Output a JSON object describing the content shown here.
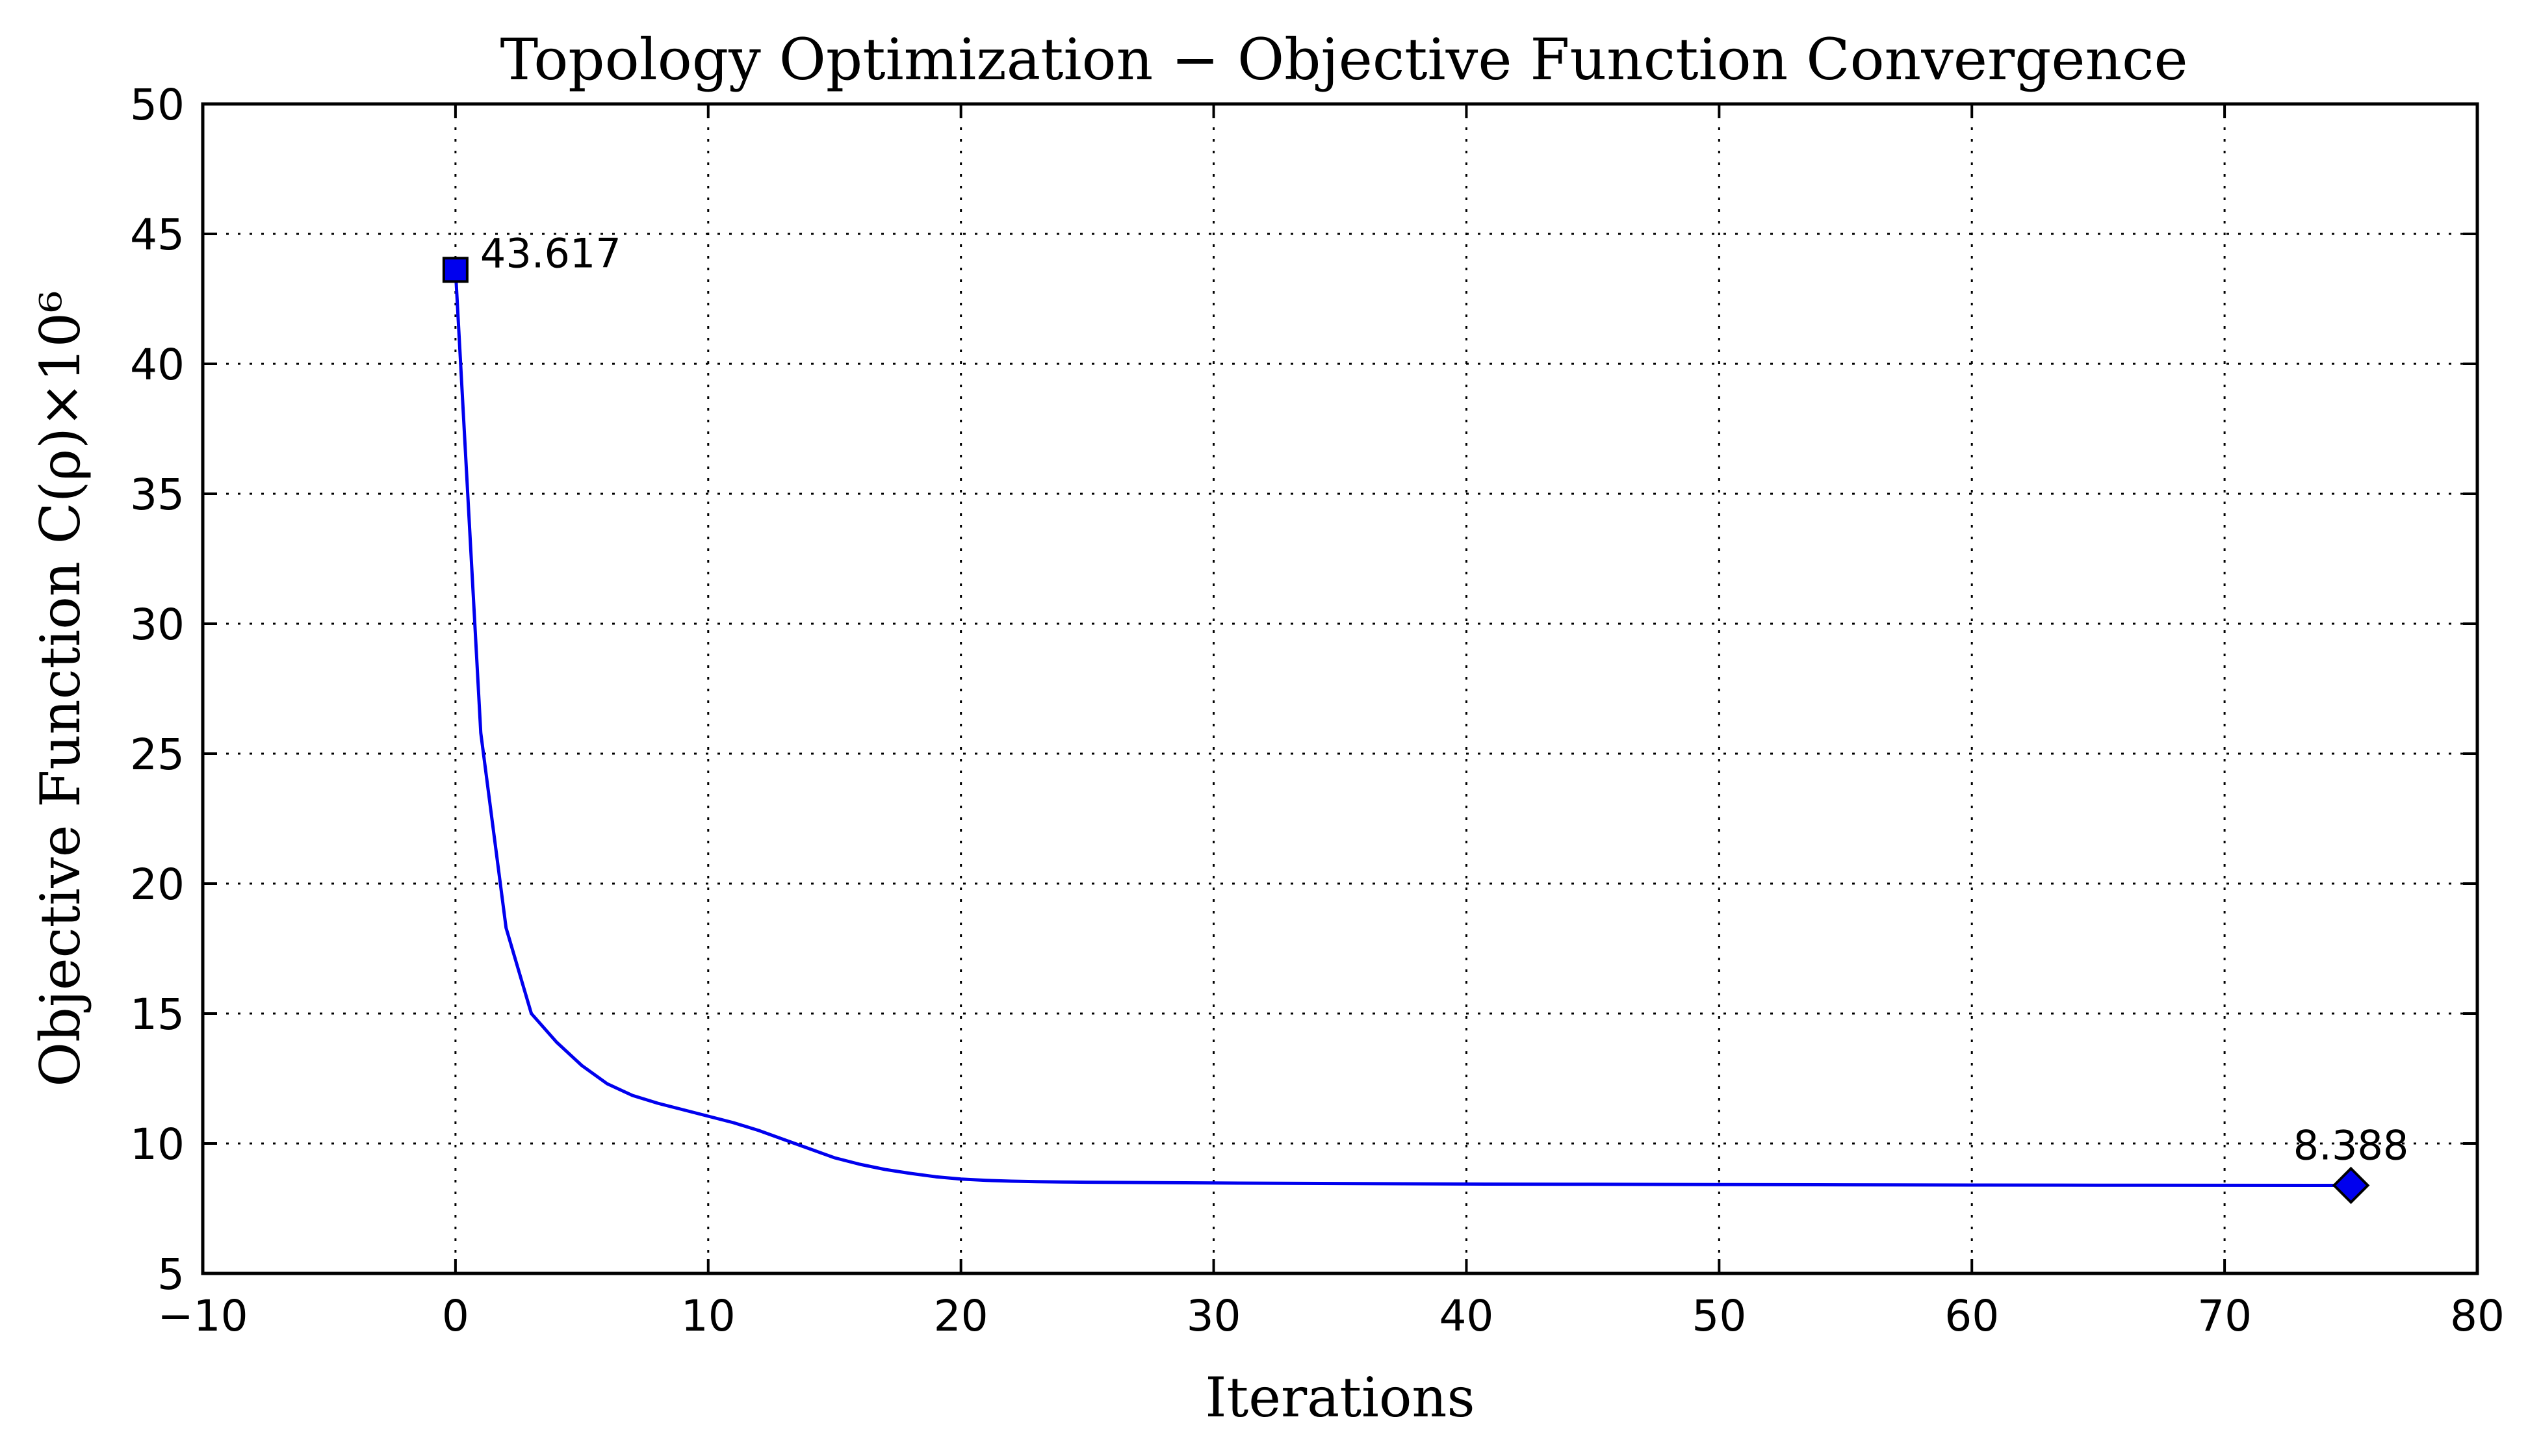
{
  "chart_data": {
    "type": "line",
    "title": "Topology Optimization − Objective Function Convergence",
    "xlabel": "Iterations",
    "ylabel": "Objective Function C(ρ)×10⁶",
    "xlim": [
      -10,
      80
    ],
    "ylim": [
      5,
      50
    ],
    "xticks": [
      -10,
      0,
      10,
      20,
      30,
      40,
      50,
      60,
      70,
      80
    ],
    "xtick_labels": [
      "−10",
      "0",
      "10",
      "20",
      "30",
      "40",
      "50",
      "60",
      "70",
      "80"
    ],
    "yticks": [
      5,
      10,
      15,
      20,
      25,
      30,
      35,
      40,
      45,
      50
    ],
    "ytick_labels": [
      "5",
      "10",
      "15",
      "20",
      "25",
      "30",
      "35",
      "40",
      "45",
      "50"
    ],
    "grid": true,
    "line_color": "#0000ee",
    "series": [
      {
        "x": [
          0,
          1,
          2,
          3,
          4,
          5,
          6,
          7,
          8,
          9,
          10,
          11,
          12,
          13,
          14,
          15,
          16,
          17,
          18,
          19,
          20,
          21,
          22,
          23,
          24,
          25,
          30,
          35,
          40,
          45,
          50,
          55,
          60,
          65,
          70,
          75
        ],
        "y": [
          43.617,
          25.8,
          18.3,
          15.0,
          13.9,
          13.0,
          12.3,
          11.85,
          11.55,
          11.3,
          11.05,
          10.8,
          10.5,
          10.15,
          9.8,
          9.45,
          9.2,
          9.0,
          8.85,
          8.72,
          8.63,
          8.58,
          8.55,
          8.53,
          8.52,
          8.51,
          8.48,
          8.46,
          8.44,
          8.43,
          8.42,
          8.41,
          8.4,
          8.395,
          8.39,
          8.388
        ]
      }
    ],
    "markers": [
      {
        "x": 0,
        "y": 43.617,
        "shape": "square",
        "color": "#0000ee"
      },
      {
        "x": 75,
        "y": 8.388,
        "shape": "diamond",
        "color": "#0000ee"
      }
    ],
    "annotations": [
      {
        "text": "43.617",
        "x": 0,
        "y": 43.617
      },
      {
        "text": "8.388",
        "x": 75,
        "y": 8.388
      }
    ]
  }
}
